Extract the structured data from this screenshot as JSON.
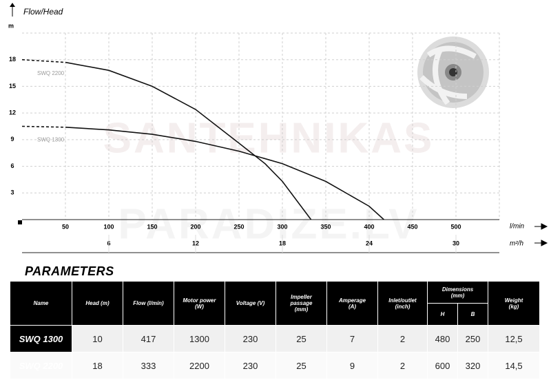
{
  "chart_data": {
    "type": "line",
    "title": "Flow/Head",
    "y_label": "m",
    "x_label": "l/min",
    "x2_label": "m²/h",
    "xlim": [
      0,
      550
    ],
    "xticks": [
      50,
      100,
      150,
      200,
      250,
      300,
      350,
      400,
      450,
      500
    ],
    "x2lim": [
      0,
      33
    ],
    "x2ticks": [
      6,
      12,
      18,
      24,
      30
    ],
    "ylim": [
      0,
      21
    ],
    "yticks": [
      3,
      6,
      9,
      12,
      15,
      18
    ],
    "grid": true,
    "series": [
      {
        "name": "SWQ 2200",
        "color": "#111111",
        "x": [
          0,
          50,
          100,
          150,
          200,
          250,
          280,
          300,
          333
        ],
        "values": [
          18,
          17.7,
          16.8,
          15,
          12.4,
          8.6,
          6.3,
          4.3,
          0
        ]
      },
      {
        "name": "SWQ 1300",
        "color": "#111111",
        "x": [
          0,
          50,
          100,
          150,
          200,
          250,
          300,
          350,
          400,
          417
        ],
        "values": [
          10.5,
          10.4,
          10.1,
          9.6,
          8.8,
          7.7,
          6.3,
          4.3,
          1.5,
          0
        ]
      }
    ]
  },
  "watermark": [
    "SANTEHNIKAS",
    "PARADIZE.LV"
  ],
  "parameters": {
    "title": "PARAMETERS",
    "headers": [
      "Name",
      "Head (m)",
      "Flow (l/min)",
      "Motor power (W)",
      "Voltage (V)",
      "Impeller passage (mm)",
      "Amperage (A)",
      "Inlet/outlet (inch)"
    ],
    "dimensions": {
      "label": "Dimensions (mm)",
      "sub": [
        "H",
        "B"
      ]
    },
    "weight": "Weight (kg)",
    "rows": [
      [
        "SWQ 1300",
        10,
        417,
        1300,
        230,
        25,
        7,
        2,
        480,
        250,
        "12,5"
      ],
      [
        "SWQ 2200",
        18,
        333,
        2200,
        230,
        25,
        9,
        2,
        600,
        320,
        "14,5"
      ]
    ]
  }
}
